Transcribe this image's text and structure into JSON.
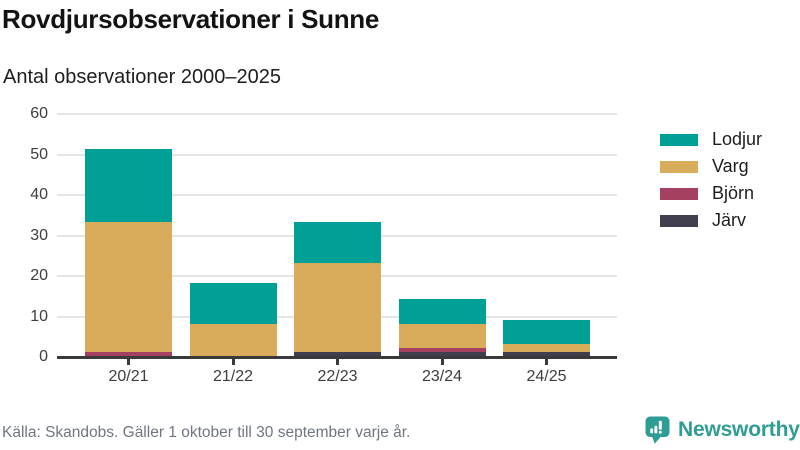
{
  "chart_data": {
    "type": "bar",
    "stacked": true,
    "title": "Rovdjursobservationer i Sunne",
    "subtitle": "Antal observationer 2000–2025",
    "categories": [
      "20/21",
      "21/22",
      "22/23",
      "23/24",
      "24/25"
    ],
    "series": [
      {
        "name": "Lodjur",
        "color": "#00A096",
        "values": [
          18,
          10,
          10,
          6,
          6
        ]
      },
      {
        "name": "Varg",
        "color": "#D9AC5C",
        "values": [
          32,
          8,
          22,
          6,
          2
        ]
      },
      {
        "name": "Björn",
        "color": "#A54061",
        "values": [
          1,
          0,
          0,
          1,
          0
        ]
      },
      {
        "name": "Järv",
        "color": "#413E4E",
        "values": [
          0,
          0,
          1,
          1,
          1
        ]
      }
    ],
    "totals": [
      51,
      18,
      33,
      14,
      9
    ],
    "stack_order_bottom_to_top": [
      "Järv",
      "Björn",
      "Varg",
      "Lodjur"
    ],
    "xlabel": "",
    "ylabel": "",
    "ylim": [
      0,
      60
    ],
    "yticks": [
      0,
      10,
      20,
      30,
      40,
      50,
      60
    ],
    "grid": true,
    "legend_position": "right",
    "gridline_color": "#E5E5E5",
    "axis_color": "#3A3A3A"
  },
  "footer": {
    "source": "Källa: Skandobs. Gäller 1 oktober till 30 september varje år.",
    "brand": {
      "name": "Newsworthy",
      "color": "#2F9D95",
      "icon": "newsworthy-bubble-chart-icon"
    }
  }
}
